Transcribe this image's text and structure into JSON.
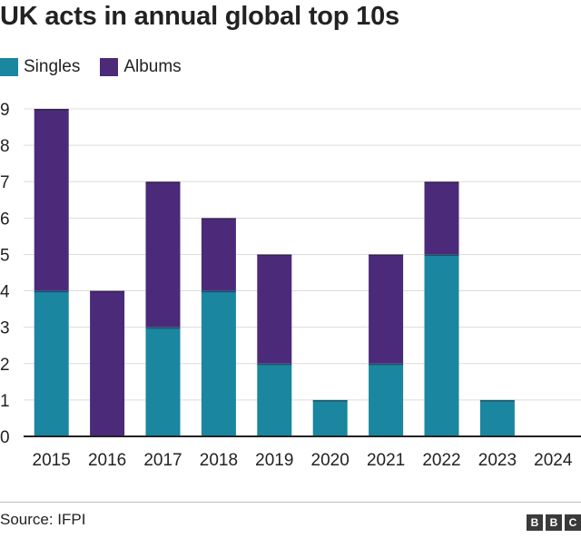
{
  "header": {
    "title": "UK acts in annual global top 10s"
  },
  "legend": {
    "items": [
      {
        "label": "Singles",
        "color": "#1a86a0"
      },
      {
        "label": "Albums",
        "color": "#4b2a7a"
      }
    ]
  },
  "chart_data": {
    "type": "bar",
    "stacked": true,
    "title": "UK acts in annual global top 10s",
    "xlabel": "",
    "ylabel": "",
    "categories": [
      "2015",
      "2016",
      "2017",
      "2018",
      "2019",
      "2020",
      "2021",
      "2022",
      "2023",
      "2024"
    ],
    "series": [
      {
        "name": "Singles",
        "color": "#1a86a0",
        "values": [
          4,
          0,
          3,
          4,
          2,
          1,
          2,
          5,
          1,
          0
        ]
      },
      {
        "name": "Albums",
        "color": "#4b2a7a",
        "values": [
          5,
          4,
          4,
          2,
          3,
          0,
          3,
          2,
          0,
          0
        ]
      }
    ],
    "ylim": [
      0,
      9
    ],
    "yticks": [
      0,
      1,
      2,
      3,
      4,
      5,
      6,
      7,
      8,
      9
    ],
    "grid": true,
    "legend_position": "top-left"
  },
  "footer": {
    "source": "Source: IFPI",
    "logo_letters": [
      "B",
      "B",
      "C"
    ]
  }
}
